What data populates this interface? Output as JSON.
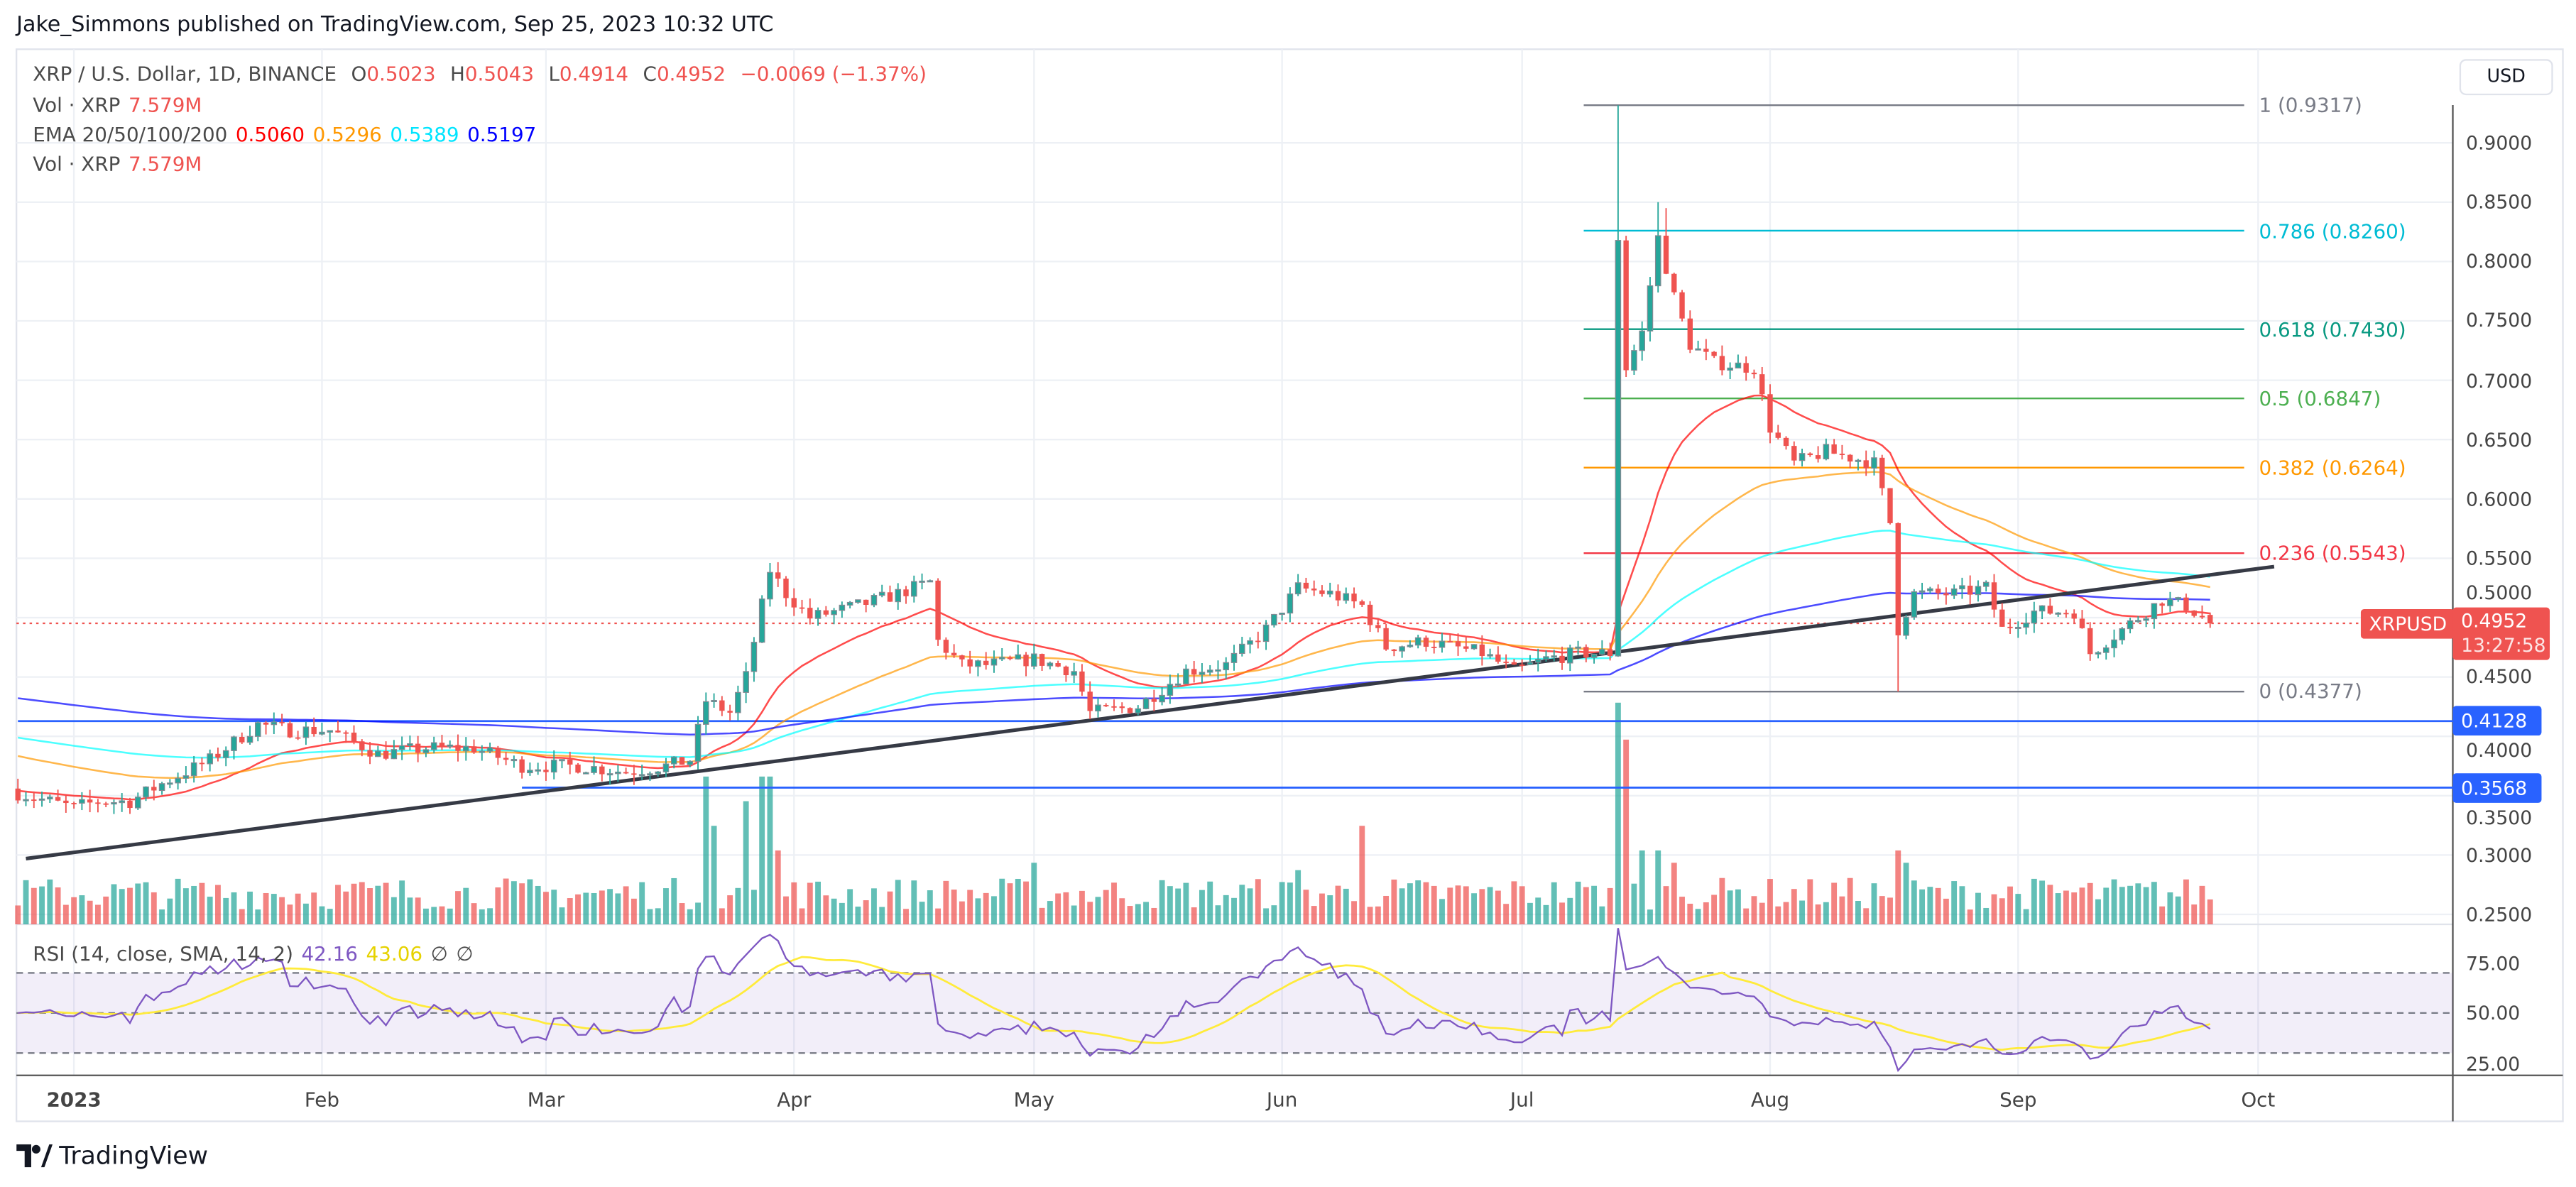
{
  "header": {
    "published": "Jake_Simmons published on TradingView.com, Sep 25, 2023 10:32 UTC"
  },
  "legend": {
    "symbol": "XRP / U.S. Dollar, 1D, BINANCE",
    "o_label": "O",
    "o": "0.5023",
    "h_label": "H",
    "h": "0.5043",
    "l_label": "L",
    "l": "0.4914",
    "c_label": "C",
    "c": "0.4952",
    "change": "−0.0069 (−1.37%)",
    "vol_label": "Vol · XRP",
    "vol": "7.579M",
    "ema_label": "EMA 20/50/100/200",
    "ema20": "0.5060",
    "ema50": "0.5296",
    "ema100": "0.5389",
    "ema200": "0.5197",
    "vol2_label": "Vol · XRP",
    "vol2": "7.579M"
  },
  "rsi_legend": {
    "label": "RSI (14, close, SMA, 14, 2)",
    "rsi": "42.16",
    "sma": "43.06",
    "ext1": "∅",
    "ext2": "∅"
  },
  "currency": "USD",
  "price_axis": [
    "0.9000",
    "0.8500",
    "0.8000",
    "0.7500",
    "0.7000",
    "0.6500",
    "0.6000",
    "0.5500",
    "0.5000",
    "0.4500",
    "0.4000",
    "0.3500",
    "0.3000",
    "0.2500"
  ],
  "rsi_axis": [
    "75.00",
    "50.00",
    "25.00"
  ],
  "time_axis": [
    {
      "label": "2023",
      "day": 0
    },
    {
      "label": "Feb",
      "day": 31
    },
    {
      "label": "Mar",
      "day": 59
    },
    {
      "label": "Apr",
      "day": 90
    },
    {
      "label": "May",
      "day": 120
    },
    {
      "label": "Jun",
      "day": 151
    },
    {
      "label": "Jul",
      "day": 181
    },
    {
      "label": "Aug",
      "day": 212
    },
    {
      "label": "Sep",
      "day": 243
    },
    {
      "label": "Oct",
      "day": 273
    }
  ],
  "price_label": {
    "symbol": "XRPUSD",
    "price": "0.4952",
    "countdown": "13:27:58"
  },
  "hlines": [
    {
      "price": "0.4128",
      "from_day": -7
    },
    {
      "price": "0.3568",
      "from_day": 56
    }
  ],
  "fib": [
    {
      "level": "1",
      "price": "0.9317",
      "color": "#787b86"
    },
    {
      "level": "0.786",
      "price": "0.8260",
      "color": "#00bcd4"
    },
    {
      "level": "0.618",
      "price": "0.7430",
      "color": "#089981"
    },
    {
      "level": "0.5",
      "price": "0.6847",
      "color": "#4caf50"
    },
    {
      "level": "0.382",
      "price": "0.6264",
      "color": "#ff9800"
    },
    {
      "level": "0.236",
      "price": "0.5543",
      "color": "#f23645"
    },
    {
      "level": "0",
      "price": "0.4377",
      "color": "#787b86"
    }
  ],
  "colors": {
    "up": "#26a69a",
    "down": "#ef5350",
    "ema20": "#ff0000",
    "ema50": "#ff9800",
    "ema100": "#00ffff",
    "ema200": "#0000ff",
    "rsi": "#7e57c2",
    "rsi_sma": "#ffeb3b",
    "hline": "#2962ff"
  },
  "brand": "TradingView",
  "chart_data": {
    "type": "candlestick",
    "symbol": "XRPUSD",
    "x_unit": "days since 2023-01-01",
    "close_anchors": [
      [
        -7,
        0.352
      ],
      [
        -3,
        0.345
      ],
      [
        0,
        0.34
      ],
      [
        3,
        0.345
      ],
      [
        7,
        0.345
      ],
      [
        11,
        0.36
      ],
      [
        17,
        0.38
      ],
      [
        23,
        0.41
      ],
      [
        27,
        0.405
      ],
      [
        32,
        0.405
      ],
      [
        38,
        0.385
      ],
      [
        44,
        0.39
      ],
      [
        50,
        0.39
      ],
      [
        56,
        0.375
      ],
      [
        63,
        0.375
      ],
      [
        69,
        0.37
      ],
      [
        74,
        0.375
      ],
      [
        77,
        0.38
      ],
      [
        79,
        0.43
      ],
      [
        82,
        0.42
      ],
      [
        84,
        0.45
      ],
      [
        86,
        0.51
      ],
      [
        87,
        0.54
      ],
      [
        89,
        0.52
      ],
      [
        92,
        0.5
      ],
      [
        98,
        0.51
      ],
      [
        103,
        0.52
      ],
      [
        107,
        0.53
      ],
      [
        108,
        0.48
      ],
      [
        111,
        0.46
      ],
      [
        114,
        0.46
      ],
      [
        120,
        0.465
      ],
      [
        125,
        0.455
      ],
      [
        127,
        0.42
      ],
      [
        133,
        0.425
      ],
      [
        136,
        0.44
      ],
      [
        139,
        0.455
      ],
      [
        144,
        0.46
      ],
      [
        149,
        0.49
      ],
      [
        153,
        0.525
      ],
      [
        157,
        0.52
      ],
      [
        161,
        0.51
      ],
      [
        164,
        0.475
      ],
      [
        169,
        0.48
      ],
      [
        176,
        0.47
      ],
      [
        180,
        0.455
      ],
      [
        184,
        0.465
      ],
      [
        188,
        0.47
      ],
      [
        192,
        0.47
      ],
      [
        193,
        0.82
      ],
      [
        194,
        0.71
      ],
      [
        196,
        0.74
      ],
      [
        198,
        0.82
      ],
      [
        200,
        0.77
      ],
      [
        202,
        0.73
      ],
      [
        205,
        0.715
      ],
      [
        210,
        0.71
      ],
      [
        212,
        0.66
      ],
      [
        215,
        0.63
      ],
      [
        219,
        0.64
      ],
      [
        225,
        0.63
      ],
      [
        227,
        0.58
      ],
      [
        228,
        0.49
      ],
      [
        230,
        0.52
      ],
      [
        235,
        0.52
      ],
      [
        239,
        0.525
      ],
      [
        241,
        0.49
      ],
      [
        245,
        0.505
      ],
      [
        250,
        0.505
      ],
      [
        252,
        0.47
      ],
      [
        256,
        0.49
      ],
      [
        261,
        0.515
      ],
      [
        264,
        0.51
      ],
      [
        267,
        0.4952
      ]
    ],
    "high_overrides": [
      [
        193,
        0.9317
      ],
      [
        198,
        0.85
      ],
      [
        199,
        0.845
      ]
    ],
    "low_overrides": [
      [
        228,
        0.4377
      ]
    ],
    "volume_spikes": [
      [
        79,
        6
      ],
      [
        80,
        4
      ],
      [
        84,
        5
      ],
      [
        86,
        6
      ],
      [
        87,
        6
      ],
      [
        88,
        3
      ],
      [
        161,
        4
      ],
      [
        193,
        9
      ],
      [
        194,
        7.5
      ],
      [
        196,
        3
      ],
      [
        198,
        3
      ],
      [
        200,
        2.5
      ],
      [
        228,
        3
      ],
      [
        229,
        2.5
      ],
      [
        120,
        2.5
      ],
      [
        153,
        2.2
      ]
    ],
    "ema_periods": [
      20,
      50,
      100,
      200
    ],
    "rsi": {
      "period": 14,
      "sma": 14,
      "upper": 70,
      "middle": 50,
      "lower": 30
    },
    "trendline": [
      [
        -6,
        0.297
      ],
      [
        275,
        0.543
      ]
    ],
    "price_range": [
      0.25,
      0.93
    ]
  }
}
